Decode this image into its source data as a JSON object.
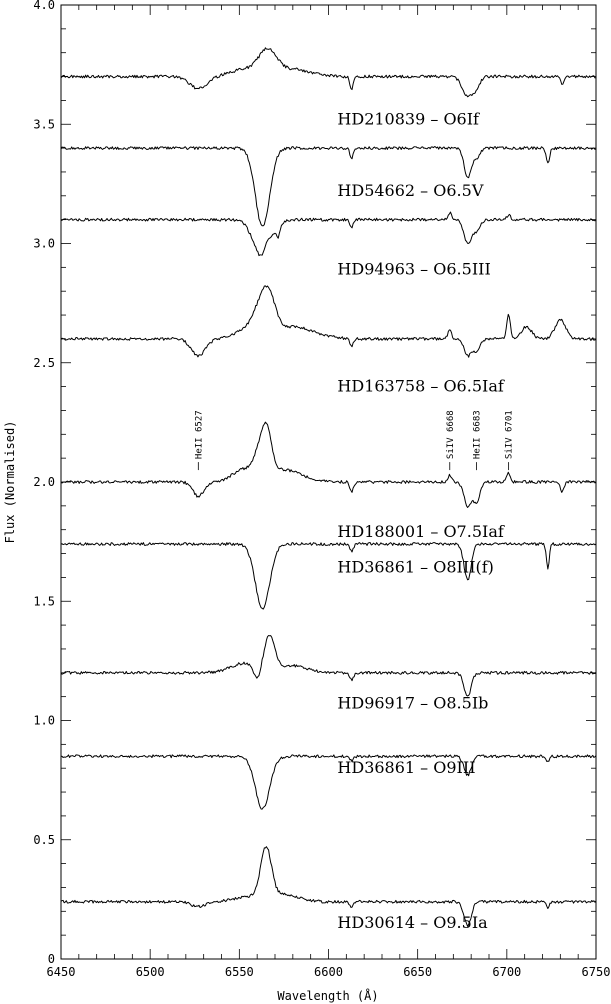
{
  "chart_data": {
    "type": "line",
    "xlabel": "Wavelength (Å)",
    "ylabel": "Flux (Normalised)",
    "xlim": [
      6450,
      6750
    ],
    "ylim": [
      0,
      4.0
    ],
    "xticks": [
      "6450",
      "6500",
      "6550",
      "6600",
      "6650",
      "6700",
      "6750"
    ],
    "yticks": [
      "0",
      "0.5",
      "1.0",
      "1.5",
      "2.0",
      "2.5",
      "3.0",
      "3.5",
      "4.0"
    ],
    "line_markers": [
      {
        "label": "HeII 6527",
        "wavelength": 6527,
        "y": 2.05
      },
      {
        "label": "SiIV 6668",
        "wavelength": 6668,
        "y": 2.05
      },
      {
        "label": "HeII 6683",
        "wavelength": 6683,
        "y": 2.05
      },
      {
        "label": "SiIV 6701",
        "wavelength": 6701,
        "y": 2.05
      }
    ],
    "series": [
      {
        "name": "HD210839 – O6If",
        "label_position": [
          6605,
          3.5
        ],
        "continuum": 3.7,
        "features": [
          [
            6527,
            -0.05,
            5
          ],
          [
            6553,
            0.03,
            8
          ],
          [
            6566,
            0.1,
            5
          ],
          [
            6580,
            0.03,
            10
          ],
          [
            6613,
            -0.05,
            1
          ],
          [
            6678,
            -0.08,
            3
          ],
          [
            6683,
            -0.04,
            2
          ],
          [
            6731,
            -0.03,
            1
          ]
        ]
      },
      {
        "name": "HD54662 – O6.5V",
        "label_position": [
          6605,
          3.2
        ],
        "continuum": 3.4,
        "features": [
          [
            6563,
            -0.33,
            4
          ],
          [
            6613,
            -0.04,
            1
          ],
          [
            6678,
            -0.12,
            2
          ],
          [
            6683,
            -0.04,
            2
          ],
          [
            6723,
            -0.06,
            1
          ]
        ]
      },
      {
        "name": "HD94963 – O6.5III",
        "label_position": [
          6605,
          2.87
        ],
        "continuum": 3.1,
        "features": [
          [
            6563,
            -0.16,
            5
          ],
          [
            6566,
            0.05,
            2
          ],
          [
            6572,
            -0.04,
            1
          ],
          [
            6613,
            -0.03,
            1
          ],
          [
            6668,
            0.03,
            1
          ],
          [
            6678,
            -0.1,
            2
          ],
          [
            6683,
            -0.05,
            2
          ],
          [
            6701,
            0.02,
            1
          ]
        ]
      },
      {
        "name": "HD163758 – O6.5Iaf",
        "label_position": [
          6605,
          2.38
        ],
        "continuum": 2.6,
        "features": [
          [
            6527,
            -0.07,
            4
          ],
          [
            6552,
            0.03,
            6
          ],
          [
            6560,
            0.07,
            4
          ],
          [
            6566,
            0.17,
            4
          ],
          [
            6580,
            0.05,
            12
          ],
          [
            6613,
            -0.03,
            1
          ],
          [
            6668,
            0.04,
            1
          ],
          [
            6678,
            -0.07,
            2
          ],
          [
            6683,
            -0.05,
            2
          ],
          [
            6701,
            0.1,
            1
          ],
          [
            6711,
            0.05,
            3
          ],
          [
            6730,
            0.08,
            3
          ]
        ]
      },
      {
        "name": "HD188001 – O7.5Iaf",
        "label_position": [
          6605,
          1.77
        ],
        "continuum": 2.0,
        "features": [
          [
            6527,
            -0.06,
            3
          ],
          [
            6552,
            0.05,
            6
          ],
          [
            6560,
            0.06,
            3
          ],
          [
            6565,
            0.2,
            3
          ],
          [
            6575,
            0.05,
            10
          ],
          [
            6613,
            -0.04,
            1
          ],
          [
            6668,
            0.03,
            1
          ],
          [
            6678,
            -0.1,
            2
          ],
          [
            6683,
            -0.08,
            2
          ],
          [
            6701,
            0.04,
            1
          ],
          [
            6731,
            -0.04,
            1
          ]
        ]
      },
      {
        "name": "HD36861 – O8III(f)",
        "label_position": [
          6605,
          1.62
        ],
        "continuum": 1.74,
        "features": [
          [
            6563,
            -0.27,
            4
          ],
          [
            6613,
            -0.03,
            1
          ],
          [
            6678,
            -0.15,
            2
          ],
          [
            6723,
            -0.1,
            0.8
          ]
        ]
      },
      {
        "name": "HD96917 – O8.5Ib",
        "label_position": [
          6605,
          1.05
        ],
        "continuum": 1.2,
        "features": [
          [
            6553,
            0.04,
            8
          ],
          [
            6560,
            -0.06,
            2
          ],
          [
            6567,
            0.14,
            3
          ],
          [
            6580,
            0.03,
            8
          ],
          [
            6613,
            -0.03,
            1
          ],
          [
            6678,
            -0.1,
            2
          ]
        ]
      },
      {
        "name": "HD36861 – O9III",
        "label_position": [
          6605,
          0.78
        ],
        "continuum": 0.85,
        "features": [
          [
            6563,
            -0.22,
            4
          ],
          [
            6613,
            -0.02,
            1
          ],
          [
            6678,
            -0.08,
            2
          ],
          [
            6723,
            -0.02,
            1
          ]
        ]
      },
      {
        "name": "HD30614 – O9.5Ia",
        "label_position": [
          6605,
          0.13
        ],
        "continuum": 0.24,
        "features": [
          [
            6527,
            -0.02,
            4
          ],
          [
            6555,
            0.02,
            8
          ],
          [
            6565,
            0.21,
            3
          ],
          [
            6575,
            0.03,
            8
          ],
          [
            6613,
            -0.02,
            1
          ],
          [
            6678,
            -0.1,
            2
          ],
          [
            6723,
            -0.03,
            0.8
          ]
        ]
      }
    ]
  }
}
